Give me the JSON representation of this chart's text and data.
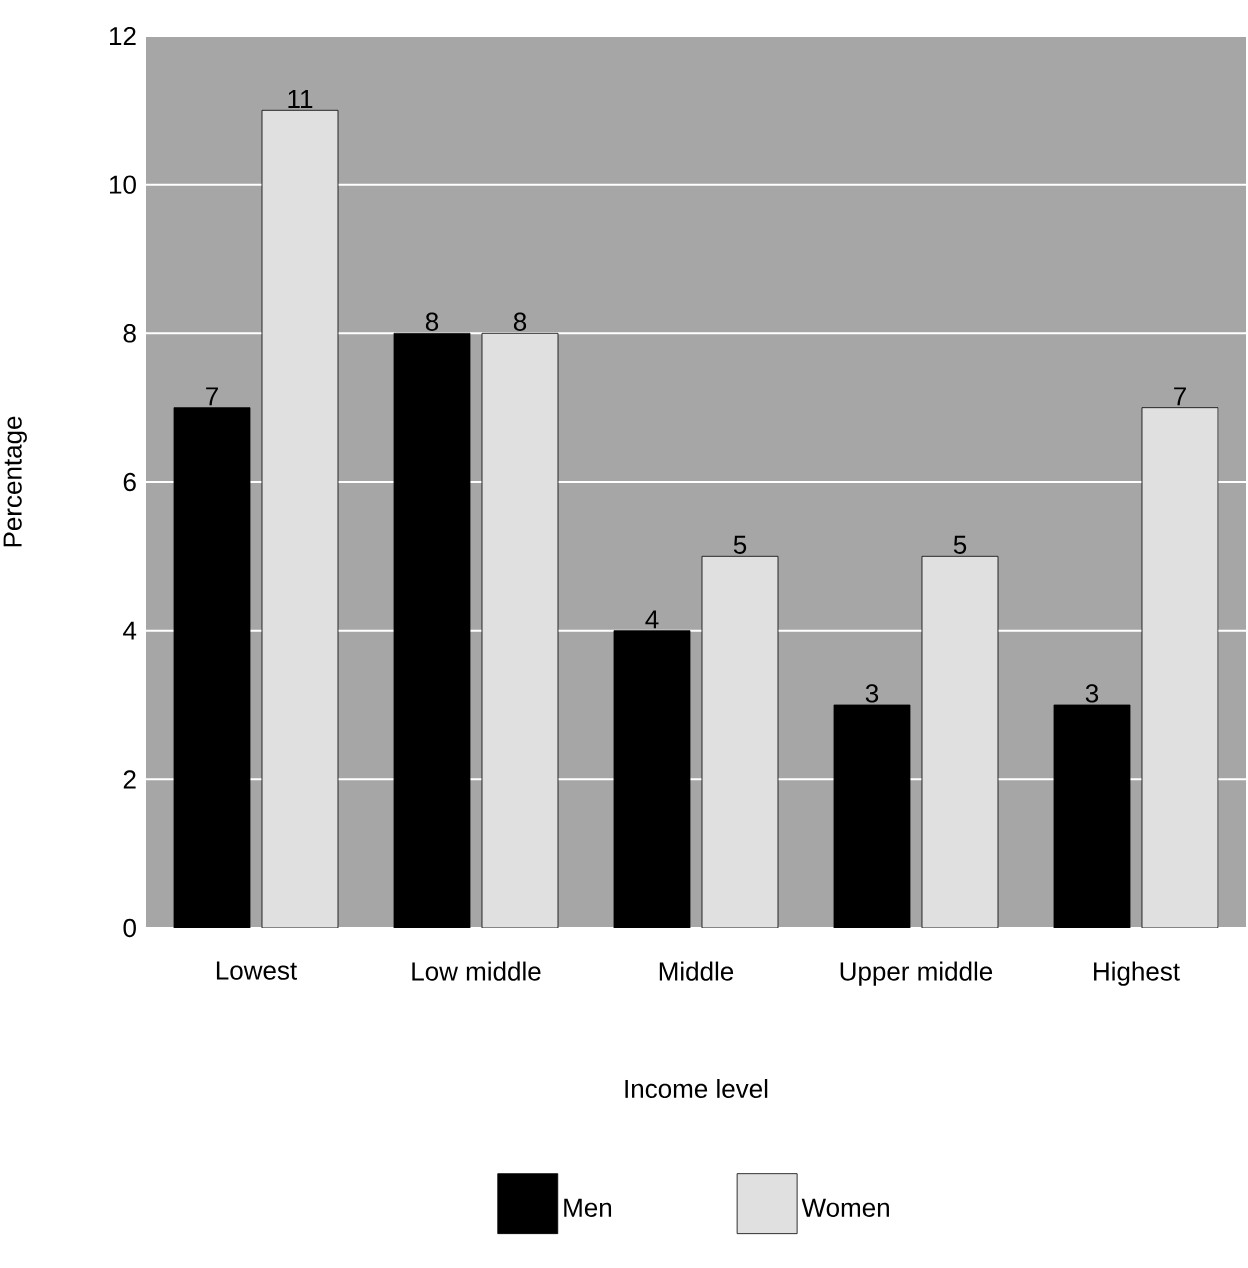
{
  "chart_data": {
    "type": "bar",
    "xlabel": "Income level",
    "ylabel": "Percentage",
    "categories": [
      "Lowest",
      "Low middle",
      "Middle",
      "Upper middle",
      "Highest"
    ],
    "series": [
      {
        "name": "Men",
        "color": "#000000",
        "values": [
          7,
          8,
          4,
          3,
          3
        ]
      },
      {
        "name": "Women",
        "color": "#e0e0e0",
        "values": [
          11,
          8,
          5,
          5,
          7
        ]
      }
    ],
    "ylim": [
      0,
      12
    ],
    "yticks": [
      0,
      2,
      4,
      6,
      8,
      10,
      12
    ],
    "grid": "y",
    "data_labels": true,
    "legend": "bottom"
  }
}
